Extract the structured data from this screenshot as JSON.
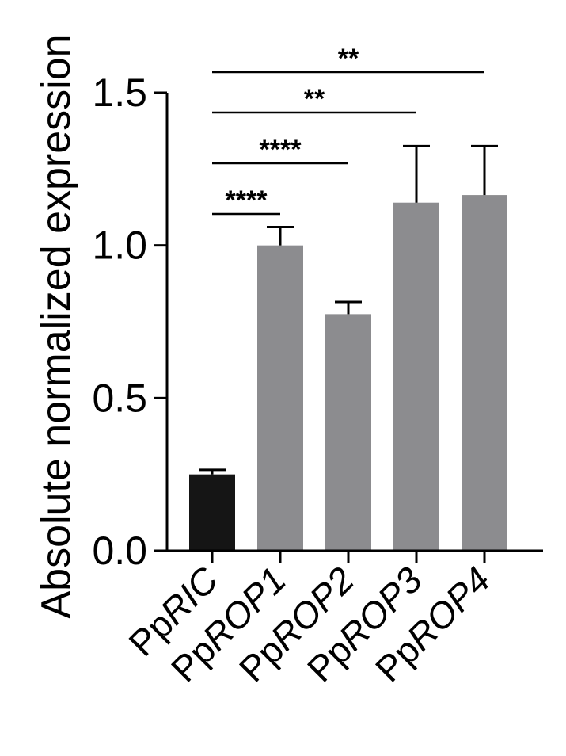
{
  "chart_data": {
    "type": "bar",
    "title": "",
    "xlabel": "",
    "ylabel": "Absolute normalized expression",
    "ylim": [
      0,
      1.5
    ],
    "yticks": [
      "0.0",
      "0.5",
      "1.0",
      "1.5"
    ],
    "categories": [
      {
        "prefix": "Pp",
        "italic": "RIC"
      },
      {
        "prefix": "Pp",
        "italic": "ROP1"
      },
      {
        "prefix": "Pp",
        "italic": "ROP2"
      },
      {
        "prefix": "Pp",
        "italic": "ROP3"
      },
      {
        "prefix": "Pp",
        "italic": "ROP4"
      }
    ],
    "values": [
      0.25,
      1.0,
      0.775,
      1.14,
      1.165
    ],
    "errors": [
      0.015,
      0.06,
      0.04,
      0.185,
      0.16
    ],
    "colors": [
      "#151515",
      "#8c8c8f",
      "#8c8c8f",
      "#8c8c8f",
      "#8c8c8f"
    ],
    "grid": false,
    "significance": [
      {
        "from": 0,
        "to": 1,
        "label": "****"
      },
      {
        "from": 0,
        "to": 2,
        "label": "****"
      },
      {
        "from": 0,
        "to": 3,
        "label": "**"
      },
      {
        "from": 0,
        "to": 4,
        "label": "**"
      }
    ]
  }
}
